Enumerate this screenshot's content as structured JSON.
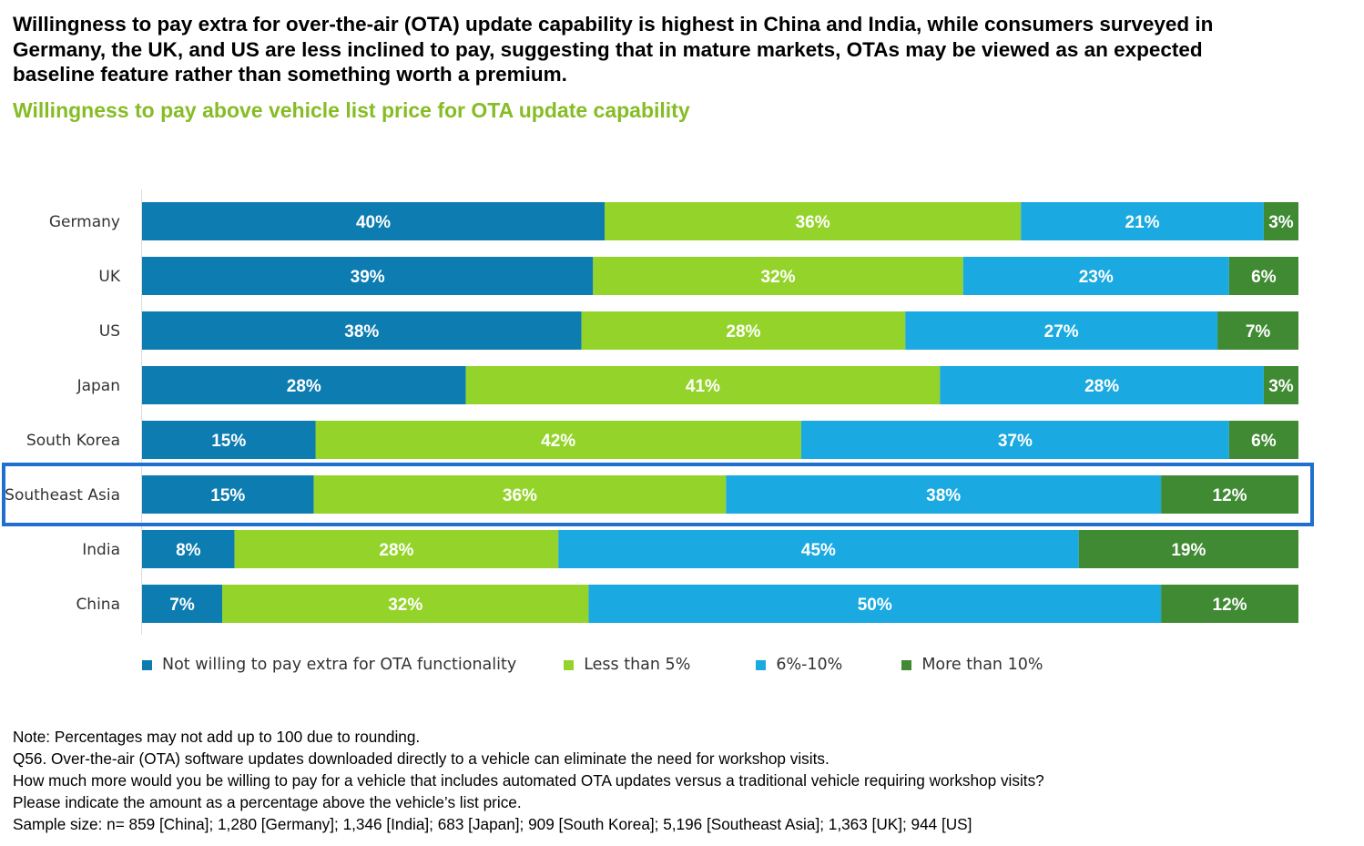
{
  "headline": "Willingness to pay extra for over-the-air (OTA) update capability is highest in China and India, while consumers surveyed in Germany, the UK, and US are less inclined to pay, suggesting that in mature markets, OTAs may be viewed as an expected baseline feature rather than something worth a premium.",
  "chart_data": {
    "type": "bar",
    "orientation": "horizontal",
    "stacked": true,
    "normalized": true,
    "title": "Willingness to pay above vehicle list price for OTA update capability",
    "categories": [
      "Germany",
      "UK",
      "US",
      "Japan",
      "South Korea",
      "Southeast Asia",
      "India",
      "China"
    ],
    "highlighted_category": "Southeast Asia",
    "series": [
      {
        "name": "Not willing to pay extra for OTA functionality",
        "color": "#0d7cb0",
        "values": [
          40,
          39,
          38,
          28,
          15,
          15,
          8,
          7
        ]
      },
      {
        "name": "Less than 5%",
        "color": "#94d42a",
        "values": [
          36,
          32,
          28,
          41,
          42,
          36,
          28,
          32
        ]
      },
      {
        "name": "6%-10%",
        "color": "#1aa9e0",
        "values": [
          21,
          23,
          27,
          28,
          37,
          38,
          45,
          50
        ]
      },
      {
        "name": "More than 10%",
        "color": "#3f8a32",
        "values": [
          3,
          6,
          7,
          3,
          6,
          12,
          19,
          12
        ]
      }
    ],
    "data_labels": true,
    "legend_position": "bottom",
    "grid": false
  },
  "colors": {
    "highlight_box": "#1f6fd0",
    "subtitle": "#86bc25"
  },
  "notes": [
    "Note: Percentages may not add up to 100 due to rounding.",
    "Q56. Over-the-air (OTA) software updates downloaded directly to a vehicle can eliminate the need for workshop visits.",
    "How much more would you be willing to pay for a vehicle that includes automated OTA updates versus a traditional vehicle requiring workshop visits?",
    "Please indicate the amount as a percentage above the vehicle’s list price.",
    "Sample size: n= 859 [China]; 1,280 [Germany]; 1,346 [India]; 683 [Japan]; 909 [South Korea]; 5,196 [Southeast Asia]; 1,363 [UK]; 944 [US]"
  ]
}
